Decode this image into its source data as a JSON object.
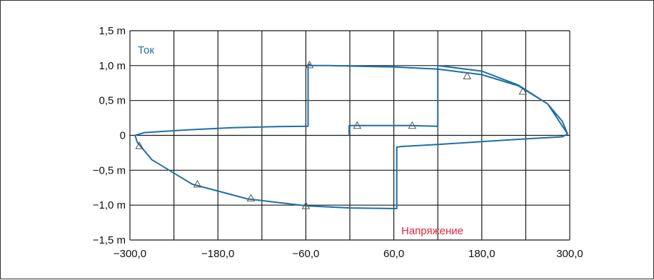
{
  "chart_data": {
    "type": "line",
    "title": "",
    "xlabel": "",
    "ylabel": "",
    "xlim": [
      -300,
      300
    ],
    "ylim": [
      -1.5,
      1.5
    ],
    "x_ticks": [
      -300,
      -240,
      -180,
      -120,
      -60,
      0,
      60,
      120,
      180,
      240,
      300
    ],
    "x_tick_labels": [
      "−300,0",
      "",
      "−180,0",
      "",
      "−60,0",
      "",
      "60,0",
      "",
      "180,0",
      "",
      "300,0"
    ],
    "y_ticks": [
      1.5,
      1.0,
      0.5,
      0,
      -0.5,
      -1.0,
      -1.5
    ],
    "y_tick_labels": [
      "1,5 m",
      "1,0 m",
      "0,5 m",
      "0",
      "−0,5 m",
      "−1,0 m",
      "−1,5 m"
    ],
    "grid": true,
    "annotations": [
      {
        "text": "Ток",
        "color": "#1f6fa6"
      },
      {
        "text": "Напряжение",
        "color": "#e0283a"
      }
    ],
    "series": [
      {
        "color": "#1f6fa6",
        "marker": "triangle",
        "points": [
          [
            -1,
            0
          ],
          [
            -1,
            0.14
          ],
          [
            80,
            0.14
          ],
          [
            120,
            0.13
          ],
          [
            120,
            1.0
          ],
          [
            180,
            0.92
          ],
          [
            230,
            0.72
          ],
          [
            270,
            0.45
          ],
          [
            290,
            0.2
          ],
          [
            297,
            0.02
          ],
          [
            290,
            -0.02
          ],
          [
            240,
            -0.05
          ],
          [
            180,
            -0.09
          ],
          [
            120,
            -0.13
          ],
          [
            70,
            -0.16
          ],
          [
            64,
            -0.17
          ],
          [
            64,
            -1.05
          ],
          [
            0,
            -1.04
          ],
          [
            -60,
            -1.01
          ],
          [
            -140,
            -0.91
          ],
          [
            -215,
            -0.7
          ],
          [
            -270,
            -0.35
          ],
          [
            -290,
            -0.1
          ],
          [
            -293,
            0
          ],
          [
            -280,
            0.04
          ],
          [
            -220,
            0.08
          ],
          [
            -160,
            0.11
          ],
          [
            -100,
            0.125
          ],
          [
            -57,
            0.13
          ],
          [
            -57,
            1.0
          ],
          [
            -55,
            1.02
          ],
          [
            -54,
            1.0
          ],
          [
            -30,
            1.0
          ],
          [
            60,
            0.98
          ],
          [
            120,
            0.95
          ],
          [
            180,
            0.87
          ],
          [
            230,
            0.71
          ],
          [
            270,
            0.45
          ],
          [
            297,
            0.02
          ]
        ],
        "markers": [
          [
            10,
            0.14
          ],
          [
            85,
            0.14
          ],
          [
            160,
            0.85
          ],
          [
            236,
            0.63
          ],
          [
            -287,
            -0.15
          ],
          [
            -208,
            -0.7
          ],
          [
            -135,
            -0.9
          ],
          [
            -60,
            -1.01
          ],
          [
            -55,
            1.01
          ]
        ]
      }
    ]
  }
}
